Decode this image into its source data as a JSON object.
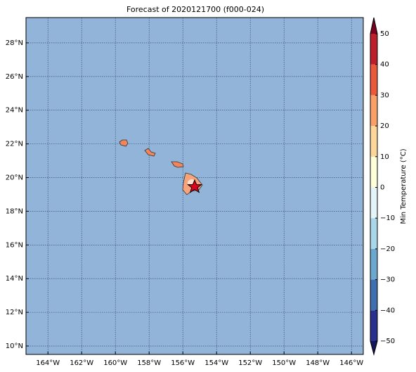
{
  "map": {
    "title": "Forecast of 2020121700 (f000-024)",
    "xlim": [
      -165.3,
      -145.3
    ],
    "ylim": [
      9.5,
      29.5
    ],
    "xticks": [
      {
        "value": -164,
        "label": "164°W"
      },
      {
        "value": -162,
        "label": "162°W"
      },
      {
        "value": -160,
        "label": "160°W"
      },
      {
        "value": -158,
        "label": "158°W"
      },
      {
        "value": -156,
        "label": "156°W"
      },
      {
        "value": -154,
        "label": "154°W"
      },
      {
        "value": -152,
        "label": "152°W"
      },
      {
        "value": -150,
        "label": "150°W"
      },
      {
        "value": -148,
        "label": "148°W"
      },
      {
        "value": -146,
        "label": "146°W"
      }
    ],
    "yticks": [
      {
        "value": 10,
        "label": "10°N"
      },
      {
        "value": 12,
        "label": "12°N"
      },
      {
        "value": 14,
        "label": "14°N"
      },
      {
        "value": 16,
        "label": "16°N"
      },
      {
        "value": 18,
        "label": "18°N"
      },
      {
        "value": 20,
        "label": "20°N"
      },
      {
        "value": 22,
        "label": "22°N"
      },
      {
        "value": 24,
        "label": "24°N"
      },
      {
        "value": 26,
        "label": "26°N"
      },
      {
        "value": 28,
        "label": "28°N"
      }
    ],
    "grid": true,
    "ocean_color": "#92b4d8",
    "colorbar": {
      "label": "Min Temperature (°C)",
      "lim": [
        -50,
        50
      ],
      "levels": [
        -50,
        -40,
        -30,
        -20,
        -10,
        0,
        10,
        20,
        30,
        40,
        50
      ],
      "colors": [
        "#2a2f8e",
        "#3f6fae",
        "#6ca7cd",
        "#a9d6e8",
        "#e4f4f8",
        "#fefedb",
        "#fdd79a",
        "#f8a068",
        "#e9593b",
        "#bb1f2b"
      ],
      "under_color": "#14145a",
      "over_color": "#7a0020",
      "ticks": [
        {
          "value": -50,
          "label": "−50"
        },
        {
          "value": -40,
          "label": "−40"
        },
        {
          "value": -30,
          "label": "−30"
        },
        {
          "value": -20,
          "label": "−20"
        },
        {
          "value": -10,
          "label": "−10"
        },
        0,
        10,
        20,
        30,
        40,
        50
      ]
    }
  }
}
